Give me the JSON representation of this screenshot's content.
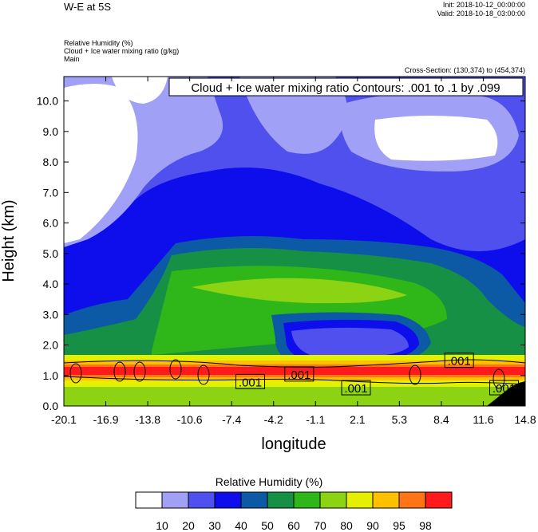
{
  "header": {
    "title": "W-E at 5S",
    "init": "Init: 2018-10-12_00:00:00",
    "valid": "Valid: 2018-10-18_03:00:00",
    "field1": "Relative Humidity   (%)",
    "field2": "Cloud + Ice water mixing ratio   (g/kg)",
    "field3": "Main",
    "cross_section": "Cross-Section: (130,374) to (454,374)"
  },
  "chart_data": {
    "type": "heatmap",
    "title": "W-E at 5S",
    "xlabel": "longitude",
    "ylabel": "Height (km)",
    "xlim": [
      -20.1,
      14.8
    ],
    "ylim": [
      0.0,
      10.8
    ],
    "x_ticks": [
      "-20.1",
      "-16.9",
      "-13.8",
      "-10.6",
      "-7.4",
      "-4.2",
      "-1.1",
      "2.1",
      "5.3",
      "8.4",
      "11.6",
      "14.8"
    ],
    "y_ticks": [
      "0.0",
      "1.0",
      "2.0",
      "3.0",
      "4.0",
      "5.0",
      "6.0",
      "7.0",
      "8.0",
      "9.0",
      "10.0"
    ],
    "contour_info": "Cloud + Ice water mixing ratio Contours: .001 to .1 by .099",
    "contour_labels": [
      {
        "text": ".001",
        "lon": -6.0,
        "height": 0.8
      },
      {
        "text": ".001",
        "lon": -2.3,
        "height": 1.05
      },
      {
        "text": ".001",
        "lon": 2.0,
        "height": 0.6
      },
      {
        "text": ".001",
        "lon": 9.8,
        "height": 1.5
      },
      {
        "text": ".001",
        "lon": 13.2,
        "height": 0.6
      }
    ],
    "colorbar": {
      "title": "Relative Humidity  (%)",
      "levels": [
        "10",
        "20",
        "30",
        "40",
        "50",
        "60",
        "70",
        "80",
        "90",
        "95",
        "98"
      ],
      "colors": [
        "#ffffff",
        "#a0a0f7",
        "#5050ee",
        "#0e0eec",
        "#0c5aa5",
        "#169044",
        "#2fb719",
        "#8cd313",
        "#e4f000",
        "#ffc000",
        "#ff7414",
        "#ff1b1b"
      ]
    },
    "grid": false
  }
}
